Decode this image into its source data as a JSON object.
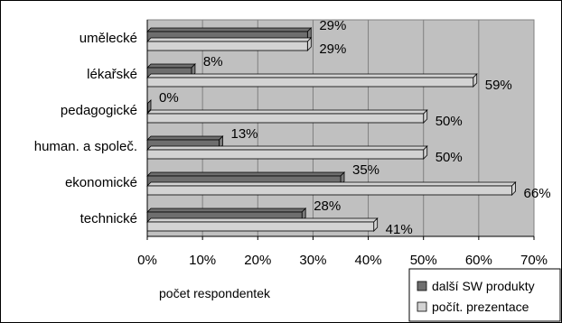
{
  "chart_data": {
    "type": "bar",
    "orientation": "horizontal",
    "categories": [
      "umělecké",
      "lékařské",
      "pedagogické",
      "human. a společ.",
      "ekonomické",
      "technické"
    ],
    "series": [
      {
        "name": "další SW produkty",
        "values": [
          29,
          8,
          0,
          13,
          35,
          28
        ],
        "color": "#6e6e6e"
      },
      {
        "name": "počít. prezentace",
        "values": [
          29,
          59,
          50,
          50,
          66,
          41
        ],
        "color": "#d3d3d3"
      }
    ],
    "value_suffix": "%",
    "xlabel": "počet respondentek",
    "xlim": [
      0,
      70
    ],
    "xticks": [
      0,
      10,
      20,
      30,
      40,
      50,
      60,
      70
    ],
    "tick_suffix": "%",
    "grid": true,
    "plot_background": "#c0c0c0",
    "legend_position": "bottom-right",
    "bar_style": "3d"
  }
}
